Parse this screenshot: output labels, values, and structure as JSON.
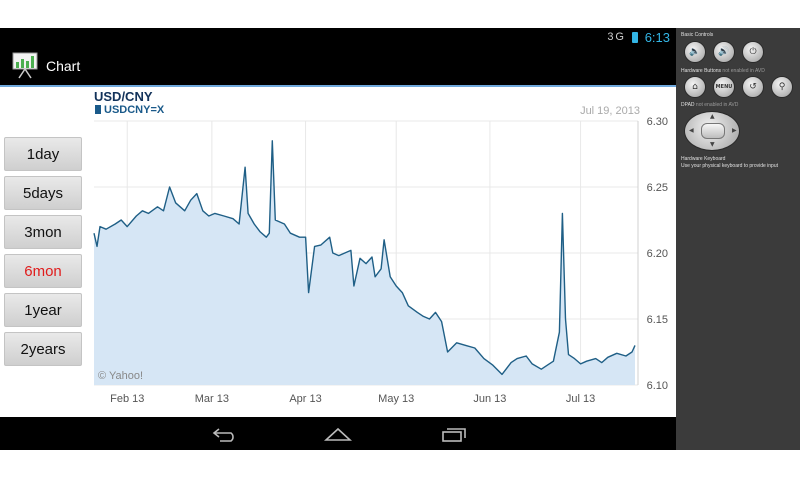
{
  "status_bar": {
    "signal": "3G",
    "time": "6:13"
  },
  "action_bar": {
    "app_title": "Chart",
    "app_icon": "chart-icon"
  },
  "range_buttons": [
    {
      "label": "1day",
      "active": false
    },
    {
      "label": "5days",
      "active": false
    },
    {
      "label": "3mon",
      "active": false
    },
    {
      "label": "6mon",
      "active": true
    },
    {
      "label": "1year",
      "active": false
    },
    {
      "label": "2years",
      "active": false
    }
  ],
  "chart": {
    "title": "USD/CNY",
    "legend_symbol": "USDCNY=X",
    "date": "Jul 19, 2013",
    "watermark": "© Yahoo!",
    "colors": {
      "line": "#1f5f86",
      "fill": "#d6e6f5",
      "title": "#12325a",
      "legend": "#1a5a8a"
    }
  },
  "chart_data": {
    "type": "area",
    "title": "USD/CNY",
    "series": [
      {
        "name": "USDCNY=X"
      }
    ],
    "x_tick_labels": [
      "Feb 13",
      "Mar 13",
      "Apr 13",
      "May 13",
      "Jun 13",
      "Jul 13"
    ],
    "y_tick_labels": [
      "6.30",
      "6.25",
      "6.20",
      "6.15",
      "6.10"
    ],
    "ylim": [
      6.1,
      6.3
    ],
    "y_axis_side": "right",
    "grid": true,
    "points": [
      [
        "2013-01-21",
        6.215
      ],
      [
        "2013-01-22",
        6.205
      ],
      [
        "2013-01-23",
        6.22
      ],
      [
        "2013-01-25",
        6.218
      ],
      [
        "2013-01-28",
        6.222
      ],
      [
        "2013-01-30",
        6.225
      ],
      [
        "2013-02-01",
        6.22
      ],
      [
        "2013-02-04",
        6.228
      ],
      [
        "2013-02-06",
        6.232
      ],
      [
        "2013-02-08",
        6.23
      ],
      [
        "2013-02-11",
        6.235
      ],
      [
        "2013-02-13",
        6.232
      ],
      [
        "2013-02-15",
        6.25
      ],
      [
        "2013-02-17",
        6.238
      ],
      [
        "2013-02-20",
        6.232
      ],
      [
        "2013-02-22",
        6.24
      ],
      [
        "2013-02-24",
        6.245
      ],
      [
        "2013-02-26",
        6.232
      ],
      [
        "2013-02-28",
        6.228
      ],
      [
        "2013-03-02",
        6.23
      ],
      [
        "2013-03-05",
        6.228
      ],
      [
        "2013-03-08",
        6.226
      ],
      [
        "2013-03-10",
        6.222
      ],
      [
        "2013-03-12",
        6.265
      ],
      [
        "2013-03-13",
        6.23
      ],
      [
        "2013-03-15",
        6.222
      ],
      [
        "2013-03-17",
        6.216
      ],
      [
        "2013-03-19",
        6.212
      ],
      [
        "2013-03-20",
        6.215
      ],
      [
        "2013-03-21",
        6.285
      ],
      [
        "2013-03-22",
        6.225
      ],
      [
        "2013-03-25",
        6.222
      ],
      [
        "2013-03-27",
        6.215
      ],
      [
        "2013-03-30",
        6.212
      ],
      [
        "2013-04-01",
        6.212
      ],
      [
        "2013-04-02",
        6.17
      ],
      [
        "2013-04-04",
        6.205
      ],
      [
        "2013-04-06",
        6.206
      ],
      [
        "2013-04-09",
        6.212
      ],
      [
        "2013-04-10",
        6.2
      ],
      [
        "2013-04-12",
        6.198
      ],
      [
        "2013-04-14",
        6.2
      ],
      [
        "2013-04-16",
        6.202
      ],
      [
        "2013-04-17",
        6.175
      ],
      [
        "2013-04-19",
        6.196
      ],
      [
        "2013-04-21",
        6.192
      ],
      [
        "2013-04-23",
        6.197
      ],
      [
        "2013-04-24",
        6.182
      ],
      [
        "2013-04-26",
        6.188
      ],
      [
        "2013-04-27",
        6.21
      ],
      [
        "2013-04-29",
        6.182
      ],
      [
        "2013-05-01",
        6.175
      ],
      [
        "2013-05-03",
        6.17
      ],
      [
        "2013-05-05",
        6.16
      ],
      [
        "2013-05-08",
        6.155
      ],
      [
        "2013-05-10",
        6.152
      ],
      [
        "2013-05-12",
        6.15
      ],
      [
        "2013-05-14",
        6.155
      ],
      [
        "2013-05-16",
        6.148
      ],
      [
        "2013-05-18",
        6.125
      ],
      [
        "2013-05-21",
        6.132
      ],
      [
        "2013-05-24",
        6.13
      ],
      [
        "2013-05-27",
        6.128
      ],
      [
        "2013-05-30",
        6.12
      ],
      [
        "2013-06-02",
        6.115
      ],
      [
        "2013-06-05",
        6.108
      ],
      [
        "2013-06-08",
        6.117
      ],
      [
        "2013-06-10",
        6.12
      ],
      [
        "2013-06-13",
        6.122
      ],
      [
        "2013-06-15",
        6.116
      ],
      [
        "2013-06-18",
        6.112
      ],
      [
        "2013-06-20",
        6.115
      ],
      [
        "2013-06-22",
        6.118
      ],
      [
        "2013-06-24",
        6.14
      ],
      [
        "2013-06-25",
        6.23
      ],
      [
        "2013-06-26",
        6.15
      ],
      [
        "2013-06-27",
        6.123
      ],
      [
        "2013-06-29",
        6.12
      ],
      [
        "2013-07-01",
        6.116
      ],
      [
        "2013-07-03",
        6.118
      ],
      [
        "2013-07-06",
        6.12
      ],
      [
        "2013-07-08",
        6.117
      ],
      [
        "2013-07-10",
        6.121
      ],
      [
        "2013-07-13",
        6.124
      ],
      [
        "2013-07-16",
        6.122
      ],
      [
        "2013-07-18",
        6.125
      ],
      [
        "2013-07-19",
        6.13
      ]
    ]
  },
  "nav_bar": {
    "back": "back-icon",
    "home": "home-icon",
    "recents": "recents-icon"
  },
  "emulator": {
    "basic_controls": "Basic Controls",
    "hardware_buttons": "Hardware Buttons",
    "not_enabled": "not enabled in AVD",
    "menu_label": "MENU",
    "dpad": "DPAD",
    "dpad_not_enabled": "not enabled in AVD",
    "hardware_keyboard": "Hardware Keyboard",
    "keyboard_hint": "Use your physical keyboard to provide input"
  }
}
